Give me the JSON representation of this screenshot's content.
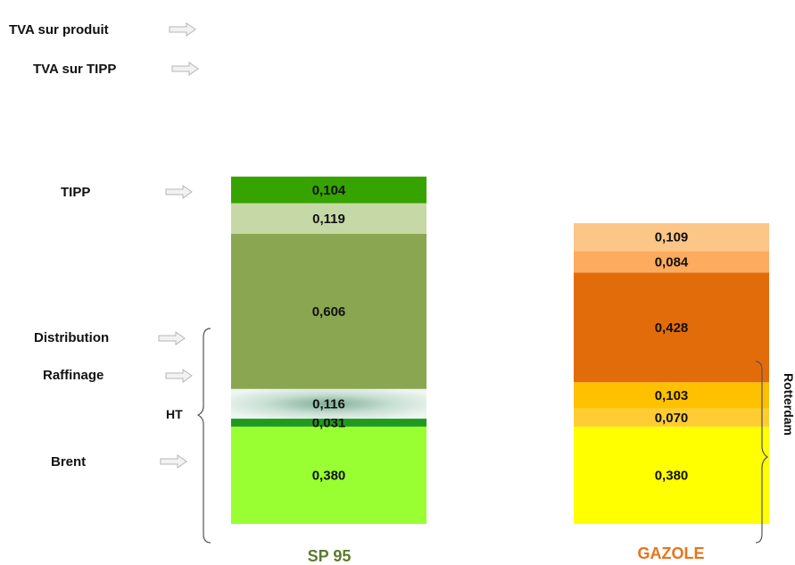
{
  "chart_data": {
    "type": "bar",
    "stacked": true,
    "categories": [
      "SP 95",
      "GAZOLE"
    ],
    "category_colors": [
      "#5d7a2e",
      "#e8731a"
    ],
    "series": [
      {
        "column": "SP 95",
        "segments": [
          {
            "name": "Brent",
            "value": "0,380",
            "color": "#99ff33"
          },
          {
            "name": "Raffinage",
            "value": "0,031",
            "color": "#1f9a1f"
          },
          {
            "name": "Distribution",
            "value": "0,116",
            "color": "#d5e9df"
          },
          {
            "name": "TIPP",
            "value": "0,606",
            "color": "#8aa650"
          },
          {
            "name": "TVA sur TIPP",
            "value": "0,119",
            "color": "#c6d8a6"
          },
          {
            "name": "TVA sur produit",
            "value": "0,104",
            "color": "#36a300"
          }
        ]
      },
      {
        "column": "GAZOLE",
        "segments": [
          {
            "value": "0,380",
            "color": "#ffff00"
          },
          {
            "value": "0,070",
            "color": "#ffcc33"
          },
          {
            "value": "0,103",
            "color": "#ffc000"
          },
          {
            "value": "0,428",
            "color": "#e36c0a"
          },
          {
            "value": "0,084",
            "color": "#fdab5f"
          },
          {
            "value": "0,109",
            "color": "#fcc687"
          }
        ]
      }
    ],
    "category_labels": [
      "TVA sur produit",
      "TVA sur TIPP",
      "TIPP",
      "Distribution",
      "Raffinage",
      "Brent"
    ],
    "brace_labels": {
      "left": "HT",
      "right": "Rotterdam"
    }
  }
}
